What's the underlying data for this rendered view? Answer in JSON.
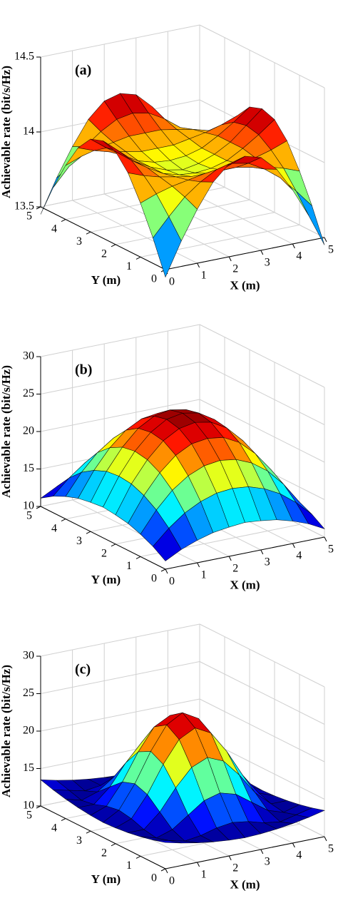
{
  "chart_data": [
    {
      "type": "surface",
      "annotation": "(a)",
      "xlabel": "X (m)",
      "ylabel": "Y (m)",
      "zlabel": "Achievable rate (bit/s/Hz)",
      "colormap": "jet",
      "grid": true,
      "xlim": [
        0,
        5
      ],
      "ylim": [
        0,
        5
      ],
      "zlim": [
        13.5,
        14.5
      ],
      "xticks": [
        0,
        1,
        2,
        3,
        4,
        5
      ],
      "yticks": [
        0,
        1,
        2,
        3,
        4,
        5
      ],
      "zticks": [
        13.5,
        14,
        14.5
      ],
      "x": [
        0,
        0.5,
        1,
        1.5,
        2,
        2.5,
        3,
        3.5,
        4,
        4.5,
        5
      ],
      "y": [
        0,
        0.5,
        1,
        1.5,
        2,
        2.5,
        3,
        3.5,
        4,
        4.5,
        5
      ],
      "z": [
        [
          13.45,
          13.67,
          13.86,
          14.02,
          14.12,
          14.15,
          14.12,
          14.02,
          13.86,
          13.67,
          13.45
        ],
        [
          13.67,
          13.79,
          13.9,
          13.98,
          14.04,
          14.06,
          14.04,
          13.98,
          13.9,
          13.79,
          13.67
        ],
        [
          13.86,
          13.9,
          13.93,
          13.95,
          13.97,
          13.97,
          13.97,
          13.95,
          13.93,
          13.9,
          13.86
        ],
        [
          14.02,
          13.98,
          13.95,
          13.93,
          13.91,
          13.91,
          13.91,
          13.93,
          13.95,
          13.98,
          14.02
        ],
        [
          14.12,
          14.04,
          13.97,
          13.91,
          13.88,
          13.87,
          13.88,
          13.91,
          13.97,
          14.04,
          14.12
        ],
        [
          14.15,
          14.06,
          13.97,
          13.91,
          13.87,
          13.85,
          13.87,
          13.91,
          13.97,
          14.06,
          14.15
        ],
        [
          14.12,
          14.04,
          13.97,
          13.91,
          13.88,
          13.87,
          13.88,
          13.91,
          13.97,
          14.04,
          14.12
        ],
        [
          14.02,
          13.98,
          13.95,
          13.93,
          13.91,
          13.91,
          13.91,
          13.93,
          13.95,
          13.98,
          14.02
        ],
        [
          13.86,
          13.9,
          13.93,
          13.95,
          13.97,
          13.97,
          13.97,
          13.95,
          13.93,
          13.9,
          13.86
        ],
        [
          13.67,
          13.79,
          13.9,
          13.98,
          14.04,
          14.06,
          14.04,
          13.98,
          13.9,
          13.79,
          13.67
        ],
        [
          13.45,
          13.67,
          13.86,
          14.02,
          14.12,
          14.15,
          14.12,
          14.02,
          13.86,
          13.67,
          13.45
        ]
      ]
    },
    {
      "type": "surface",
      "annotation": "(b)",
      "xlabel": "X (m)",
      "ylabel": "Y (m)",
      "zlabel": "Achievable rate (bit/s/Hz)",
      "colormap": "jet",
      "grid": true,
      "xlim": [
        0,
        5
      ],
      "ylim": [
        0,
        5
      ],
      "zlim": [
        10,
        30
      ],
      "xticks": [
        0,
        1,
        2,
        3,
        4,
        5
      ],
      "yticks": [
        0,
        1,
        2,
        3,
        4,
        5
      ],
      "zticks": [
        10,
        15,
        20,
        25,
        30
      ],
      "x": [
        0,
        0.5,
        1,
        1.5,
        2,
        2.5,
        3,
        3.5,
        4,
        4.5,
        5
      ],
      "y": [
        0,
        0.5,
        1,
        1.5,
        2,
        2.5,
        3,
        3.5,
        4,
        4.5,
        5
      ],
      "z": [
        [
          11.1,
          12.2,
          13.0,
          13.6,
          13.9,
          14.1,
          13.9,
          13.6,
          13.0,
          12.2,
          11.1
        ],
        [
          12.2,
          14.2,
          15.8,
          16.9,
          17.6,
          17.8,
          17.6,
          16.9,
          15.8,
          14.2,
          12.2
        ],
        [
          13.0,
          15.8,
          18.0,
          19.5,
          20.4,
          20.7,
          20.4,
          19.5,
          18.0,
          15.8,
          13.0
        ],
        [
          13.6,
          16.9,
          19.5,
          21.4,
          22.5,
          22.8,
          22.5,
          21.4,
          19.5,
          16.9,
          13.6
        ],
        [
          13.9,
          17.6,
          20.4,
          22.5,
          23.7,
          24.1,
          23.7,
          22.5,
          20.4,
          17.6,
          13.9
        ],
        [
          14.1,
          17.8,
          20.7,
          22.8,
          24.1,
          24.5,
          24.1,
          22.8,
          20.7,
          17.8,
          14.1
        ],
        [
          13.9,
          17.6,
          20.4,
          22.5,
          23.7,
          24.1,
          23.7,
          22.5,
          20.4,
          17.6,
          13.9
        ],
        [
          13.6,
          16.9,
          19.5,
          21.4,
          22.5,
          22.8,
          22.5,
          21.4,
          19.5,
          16.9,
          13.6
        ],
        [
          13.0,
          15.8,
          18.0,
          19.5,
          20.4,
          20.7,
          20.4,
          19.5,
          18.0,
          15.8,
          13.0
        ],
        [
          12.2,
          14.2,
          15.8,
          16.9,
          17.6,
          17.8,
          17.6,
          16.9,
          15.8,
          14.2,
          12.2
        ],
        [
          11.1,
          12.2,
          13.0,
          13.6,
          13.9,
          14.1,
          13.9,
          13.6,
          13.0,
          12.2,
          11.1
        ]
      ]
    },
    {
      "type": "surface",
      "annotation": "(c)",
      "xlabel": "X (m)",
      "ylabel": "Y (m)",
      "zlabel": "Achievable rate (bit/s/Hz)",
      "colormap": "jet",
      "grid": true,
      "xlim": [
        0,
        5
      ],
      "ylim": [
        0,
        5
      ],
      "zlim": [
        10,
        30
      ],
      "xticks": [
        0,
        1,
        2,
        3,
        4,
        5
      ],
      "yticks": [
        0,
        1,
        2,
        3,
        4,
        5
      ],
      "zticks": [
        10,
        15,
        20,
        25,
        30
      ],
      "x": [
        0,
        0.5,
        1,
        1.5,
        2,
        2.5,
        3,
        3.5,
        4,
        4.5,
        5
      ],
      "y": [
        0,
        0.5,
        1,
        1.5,
        2,
        2.5,
        3,
        3.5,
        4,
        4.5,
        5
      ],
      "z": [
        [
          13.5,
          13.0,
          12.6,
          12.3,
          12.1,
          12.0,
          12.1,
          12.3,
          12.6,
          13.0,
          13.5
        ],
        [
          13.0,
          12.5,
          12.0,
          12.3,
          12.9,
          13.2,
          12.9,
          12.3,
          12.0,
          12.5,
          13.0
        ],
        [
          12.6,
          12.0,
          12.7,
          14.2,
          15.7,
          16.3,
          15.7,
          14.2,
          12.7,
          12.0,
          12.6
        ],
        [
          12.3,
          12.3,
          14.2,
          17.0,
          19.3,
          20.2,
          19.3,
          17.0,
          14.2,
          12.3,
          12.3
        ],
        [
          12.1,
          12.9,
          15.7,
          19.3,
          22.2,
          23.3,
          22.2,
          19.3,
          15.7,
          12.9,
          12.1
        ],
        [
          12.0,
          13.2,
          16.3,
          20.2,
          23.3,
          24.5,
          23.3,
          20.2,
          16.3,
          13.2,
          12.0
        ],
        [
          12.1,
          12.9,
          15.7,
          19.3,
          22.2,
          23.3,
          22.2,
          19.3,
          15.7,
          12.9,
          12.1
        ],
        [
          12.3,
          12.3,
          14.2,
          17.0,
          19.3,
          20.2,
          19.3,
          17.0,
          14.2,
          12.3,
          12.3
        ],
        [
          12.6,
          12.0,
          12.7,
          14.2,
          15.7,
          16.3,
          15.7,
          14.2,
          12.7,
          12.0,
          12.6
        ],
        [
          13.0,
          12.5,
          12.0,
          12.3,
          12.9,
          13.2,
          12.9,
          12.3,
          12.0,
          12.5,
          13.0
        ],
        [
          13.5,
          13.0,
          12.6,
          12.3,
          12.1,
          12.0,
          12.1,
          12.3,
          12.6,
          13.0,
          13.5
        ]
      ]
    }
  ]
}
